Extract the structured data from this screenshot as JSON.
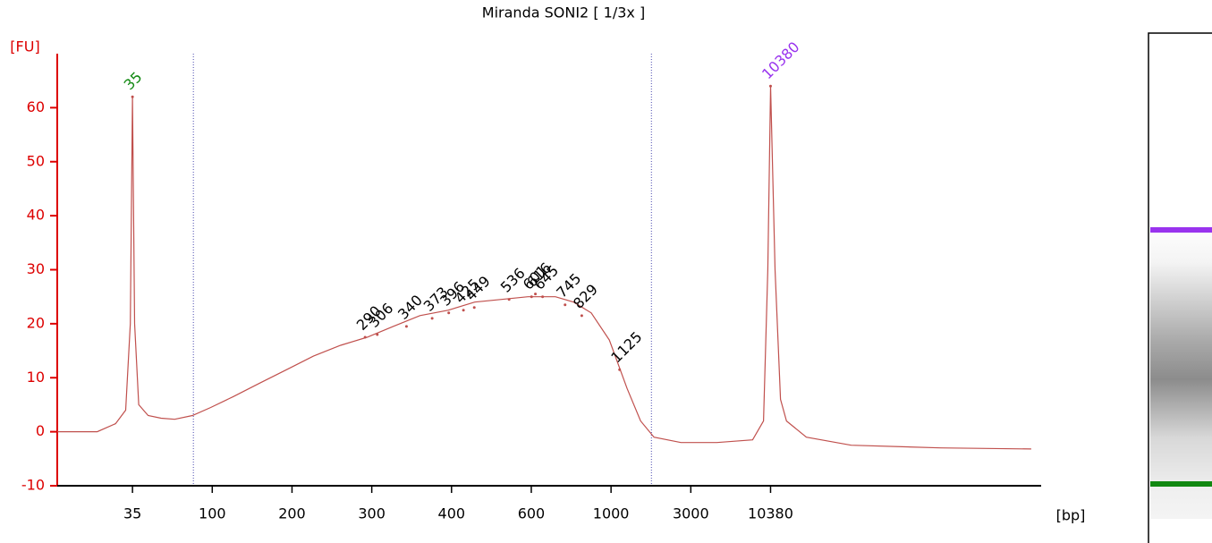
{
  "chart_data": {
    "type": "line",
    "title": "Miranda SONI2  [ 1/3x ]",
    "y_label": "[FU]",
    "x_label": "[bp]",
    "color": "#c0504d",
    "axis_color": "#dd0000",
    "log_like_ladder_axis": true,
    "xlim": [
      13,
      700000
    ],
    "xticks": [
      35,
      100,
      200,
      300,
      400,
      600,
      1000,
      3000,
      10380
    ],
    "ylim": [
      -10,
      70
    ],
    "yticks": [
      -10,
      0,
      10,
      20,
      30,
      40,
      50,
      60
    ],
    "grid": false,
    "x": [
      13,
      22,
      28,
      32,
      34,
      35,
      36,
      38,
      43,
      51,
      61,
      77,
      98,
      120,
      151,
      191,
      223,
      256,
      293,
      324,
      357,
      395,
      450,
      516,
      590,
      700,
      787,
      881,
      989,
      1248,
      1503,
      1807,
      2619,
      4500,
      7850,
      9300,
      9950,
      10380,
      11130,
      12110,
      13300,
      18130,
      36400,
      147000,
      600000
    ],
    "values": [
      0,
      0,
      1.5,
      4,
      20,
      62,
      20,
      5,
      3,
      2.5,
      2.3,
      3,
      4.5,
      6.5,
      9,
      11.5,
      14,
      16,
      17.5,
      19.5,
      21.5,
      22.5,
      24,
      24.5,
      25,
      25,
      24,
      22,
      17,
      8,
      2,
      -1,
      -2,
      -2,
      -1.5,
      2,
      30,
      64,
      30,
      6,
      2,
      -1,
      -2.5,
      -3,
      -3.2
    ],
    "region_bounds": [
      78,
      1744
    ],
    "region_color": "#4a4ab0",
    "peaks": {
      "x": [
        35,
        290,
        306,
        340,
        373,
        396,
        425,
        449,
        536,
        601,
        616,
        645,
        745,
        829,
        1125,
        10380
      ],
      "values": [
        62,
        17.5,
        18,
        19.5,
        21,
        22,
        22.5,
        23,
        24.5,
        25,
        25.5,
        25,
        23.5,
        21.5,
        11.5,
        64
      ],
      "colors": [
        "#118811",
        "#000000",
        "#000000",
        "#000000",
        "#000000",
        "#000000",
        "#000000",
        "#000000",
        "#000000",
        "#000000",
        "#000000",
        "#000000",
        "#000000",
        "#000000",
        "#000000",
        "#9933ee"
      ]
    }
  }
}
